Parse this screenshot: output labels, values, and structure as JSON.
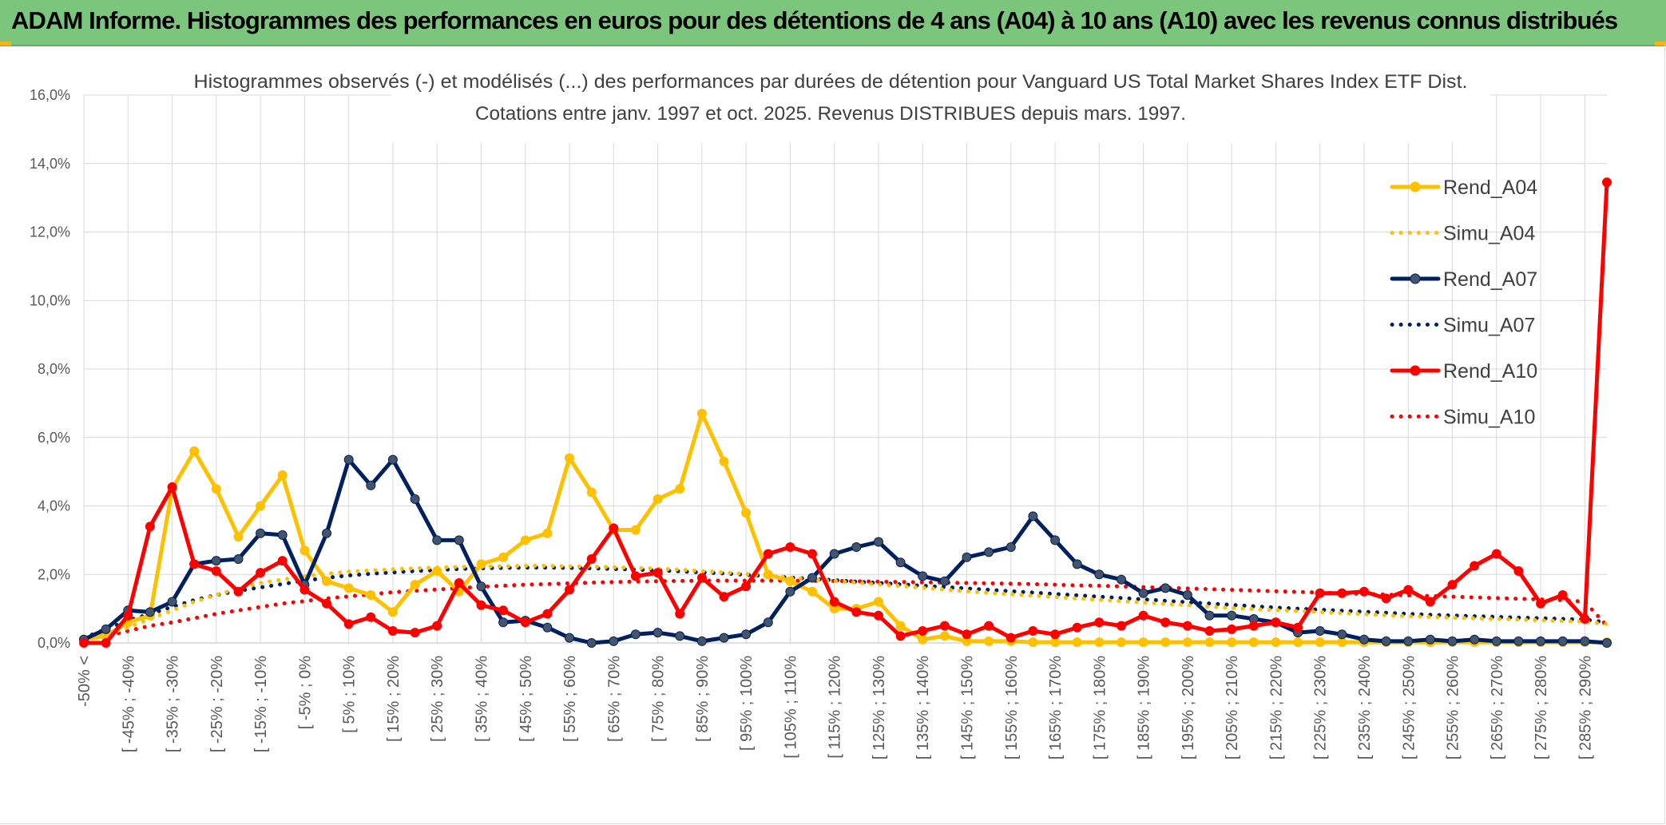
{
  "banner": {
    "title": "ADAM Informe. Histogrammes des performances en euros pour des détentions de 4 ans (A04) à 10 ans (A10) avec les revenus connus distribués"
  },
  "colors": {
    "banner_bg": "#7bc67c",
    "rend_a04": "#ffc000",
    "simu_a04": "#ffc000",
    "rend_a07": "#002060",
    "simu_a07": "#002060",
    "rend_a10": "#ff0000",
    "simu_a10": "#ff0000",
    "marker_a07": "#44546a"
  },
  "chart_data": {
    "type": "line",
    "title_line1": "Histogrammes observés (-) et modélisés (...) des performances par durées de détention pour Vanguard US Total Market Shares Index ETF Dist.",
    "title_line2": "Cotations entre janv. 1997 et oct. 2025. Revenus DISTRIBUES depuis mars. 1997.",
    "ylim": [
      0,
      16
    ],
    "yticks": [
      "0,0%",
      "2,0%",
      "4,0%",
      "6,0%",
      "8,0%",
      "10,0%",
      "12,0%",
      "14,0%",
      "16,0%"
    ],
    "x_tick_labels": [
      "-50% <",
      "[ -45% ; -40%",
      "[ -35% ; -30%",
      "[ -25% ; -20%",
      "[ -15% ; -10%",
      "[ -5% ; 0%",
      "[ 5% ; 10%",
      "[ 15% ; 20%",
      "[ 25% ; 30%",
      "[ 35% ; 40%",
      "[ 45% ; 50%",
      "[ 55% ; 60%",
      "[ 65% ; 70%",
      "[ 75% ; 80%",
      "[ 85% ; 90%",
      "[ 95% ; 100%",
      "[ 105% ; 110%",
      "[ 115% ; 120%",
      "[ 125% ; 130%",
      "[ 135% ; 140%",
      "[ 145% ; 150%",
      "[ 155% ; 160%",
      "[ 165% ; 170%",
      "[ 175% ; 180%",
      "[ 185% ; 190%",
      "[ 195% ; 200%",
      "[ 205% ; 210%",
      "[ 215% ; 220%",
      "[ 225% ; 230%",
      "[ 235% ; 240%",
      "[ 245% ; 250%",
      "[ 255% ; 260%",
      "[ 265% ; 270%",
      "[ 275% ; 280%",
      "[ 285% ; 290%"
    ],
    "n_points": 70,
    "legend": [
      "Rend_A04",
      "Simu_A04",
      "Rend_A07",
      "Simu_A07",
      "Rend_A10",
      "Simu_A10"
    ],
    "legend_position": "right",
    "series": [
      {
        "name": "Rend_A04",
        "style": "solid",
        "color": "#ffc000",
        "values": [
          0.1,
          0.2,
          0.6,
          0.8,
          4.5,
          5.6,
          4.5,
          3.1,
          4.0,
          4.9,
          2.7,
          1.8,
          1.6,
          1.4,
          0.9,
          1.7,
          2.1,
          1.5,
          2.3,
          2.5,
          3.0,
          3.2,
          5.4,
          4.4,
          3.3,
          3.3,
          4.2,
          4.5,
          6.7,
          5.3,
          3.8,
          2.0,
          1.8,
          1.5,
          1.0,
          1.0,
          1.2,
          0.5,
          0.1,
          0.2,
          0.05,
          0.05,
          0.05,
          0.02,
          0.02,
          0.02,
          0.02,
          0.02,
          0.02,
          0.02,
          0.02,
          0.02,
          0.02,
          0.02,
          0.02,
          0.02,
          0.02,
          0.02,
          0.02,
          0.02,
          0.02,
          0.02,
          0.02,
          0.02,
          0.02,
          0.02,
          0.02,
          0.02,
          0.02,
          0.02
        ]
      },
      {
        "name": "Simu_A04",
        "style": "dotted",
        "color": "#ffc000",
        "values": [
          0.1,
          0.25,
          0.45,
          0.7,
          0.95,
          1.2,
          1.4,
          1.6,
          1.75,
          1.85,
          1.95,
          2.02,
          2.08,
          2.12,
          2.15,
          2.18,
          2.2,
          2.22,
          2.23,
          2.24,
          2.25,
          2.25,
          2.24,
          2.23,
          2.21,
          2.19,
          2.17,
          2.14,
          2.1,
          2.06,
          2.01,
          1.96,
          1.91,
          1.86,
          1.81,
          1.76,
          1.71,
          1.66,
          1.61,
          1.56,
          1.51,
          1.46,
          1.42,
          1.38,
          1.34,
          1.3,
          1.26,
          1.22,
          1.18,
          1.14,
          1.1,
          1.06,
          1.02,
          0.99,
          0.96,
          0.93,
          0.9,
          0.87,
          0.84,
          0.81,
          0.78,
          0.76,
          0.74,
          0.72,
          0.7,
          0.68,
          0.66,
          0.64,
          0.62,
          0.55
        ]
      },
      {
        "name": "Rend_A07",
        "style": "solid",
        "color": "#002060",
        "values": [
          0.1,
          0.4,
          0.95,
          0.9,
          1.2,
          2.3,
          2.4,
          2.45,
          3.2,
          3.15,
          1.7,
          3.2,
          5.35,
          4.6,
          5.35,
          4.2,
          3.0,
          3.0,
          1.65,
          0.6,
          0.65,
          0.45,
          0.15,
          0.0,
          0.05,
          0.25,
          0.3,
          0.2,
          0.05,
          0.15,
          0.25,
          0.6,
          1.5,
          1.9,
          2.6,
          2.8,
          2.95,
          2.35,
          1.95,
          1.8,
          2.5,
          2.65,
          2.8,
          3.7,
          3.0,
          2.3,
          2.0,
          1.85,
          1.45,
          1.6,
          1.4,
          0.8,
          0.8,
          0.7,
          0.6,
          0.3,
          0.35,
          0.25,
          0.1,
          0.05,
          0.05,
          0.1,
          0.05,
          0.1,
          0.05,
          0.05,
          0.05,
          0.05,
          0.05,
          0.0
        ]
      },
      {
        "name": "Simu_A07",
        "style": "dotted",
        "color": "#002060",
        "values": [
          0.15,
          0.4,
          0.65,
          0.85,
          1.05,
          1.25,
          1.4,
          1.52,
          1.62,
          1.72,
          1.82,
          1.9,
          1.97,
          2.02,
          2.06,
          2.1,
          2.13,
          2.16,
          2.18,
          2.19,
          2.2,
          2.2,
          2.19,
          2.18,
          2.16,
          2.14,
          2.12,
          2.09,
          2.06,
          2.03,
          1.99,
          1.95,
          1.91,
          1.87,
          1.83,
          1.79,
          1.75,
          1.71,
          1.67,
          1.63,
          1.59,
          1.55,
          1.51,
          1.47,
          1.43,
          1.39,
          1.35,
          1.31,
          1.27,
          1.23,
          1.19,
          1.15,
          1.11,
          1.07,
          1.03,
          1.0,
          0.97,
          0.94,
          0.91,
          0.88,
          0.85,
          0.82,
          0.8,
          0.78,
          0.76,
          0.74,
          0.72,
          0.7,
          0.68,
          0.6
        ]
      },
      {
        "name": "Rend_A10",
        "style": "solid",
        "color": "#ff0000",
        "values": [
          0.0,
          0.0,
          0.8,
          3.4,
          4.55,
          2.3,
          2.1,
          1.5,
          2.05,
          2.4,
          1.55,
          1.15,
          0.55,
          0.75,
          0.35,
          0.3,
          0.5,
          1.75,
          1.1,
          0.95,
          0.6,
          0.85,
          1.55,
          2.45,
          3.35,
          1.95,
          2.05,
          0.85,
          1.9,
          1.35,
          1.65,
          2.6,
          2.8,
          2.6,
          1.2,
          0.9,
          0.8,
          0.2,
          0.35,
          0.5,
          0.25,
          0.5,
          0.15,
          0.35,
          0.25,
          0.45,
          0.6,
          0.5,
          0.8,
          0.6,
          0.5,
          0.35,
          0.4,
          0.5,
          0.6,
          0.45,
          1.45,
          1.45,
          1.5,
          1.3,
          1.55,
          1.2,
          1.7,
          2.25,
          2.6,
          2.1,
          1.15,
          1.4,
          0.7,
          13.45
        ]
      },
      {
        "name": "Simu_A10",
        "style": "dotted",
        "color": "#ff0000",
        "values": [
          0.1,
          0.2,
          0.35,
          0.5,
          0.6,
          0.72,
          0.85,
          0.95,
          1.05,
          1.15,
          1.22,
          1.3,
          1.36,
          1.42,
          1.48,
          1.52,
          1.56,
          1.6,
          1.64,
          1.67,
          1.7,
          1.72,
          1.74,
          1.76,
          1.78,
          1.79,
          1.8,
          1.81,
          1.82,
          1.82,
          1.82,
          1.82,
          1.82,
          1.81,
          1.81,
          1.8,
          1.79,
          1.78,
          1.77,
          1.76,
          1.75,
          1.74,
          1.73,
          1.72,
          1.7,
          1.68,
          1.67,
          1.65,
          1.63,
          1.61,
          1.59,
          1.57,
          1.55,
          1.53,
          1.51,
          1.49,
          1.47,
          1.45,
          1.43,
          1.41,
          1.39,
          1.37,
          1.35,
          1.33,
          1.31,
          1.29,
          1.27,
          1.25,
          1.2,
          0.5
        ]
      }
    ]
  }
}
